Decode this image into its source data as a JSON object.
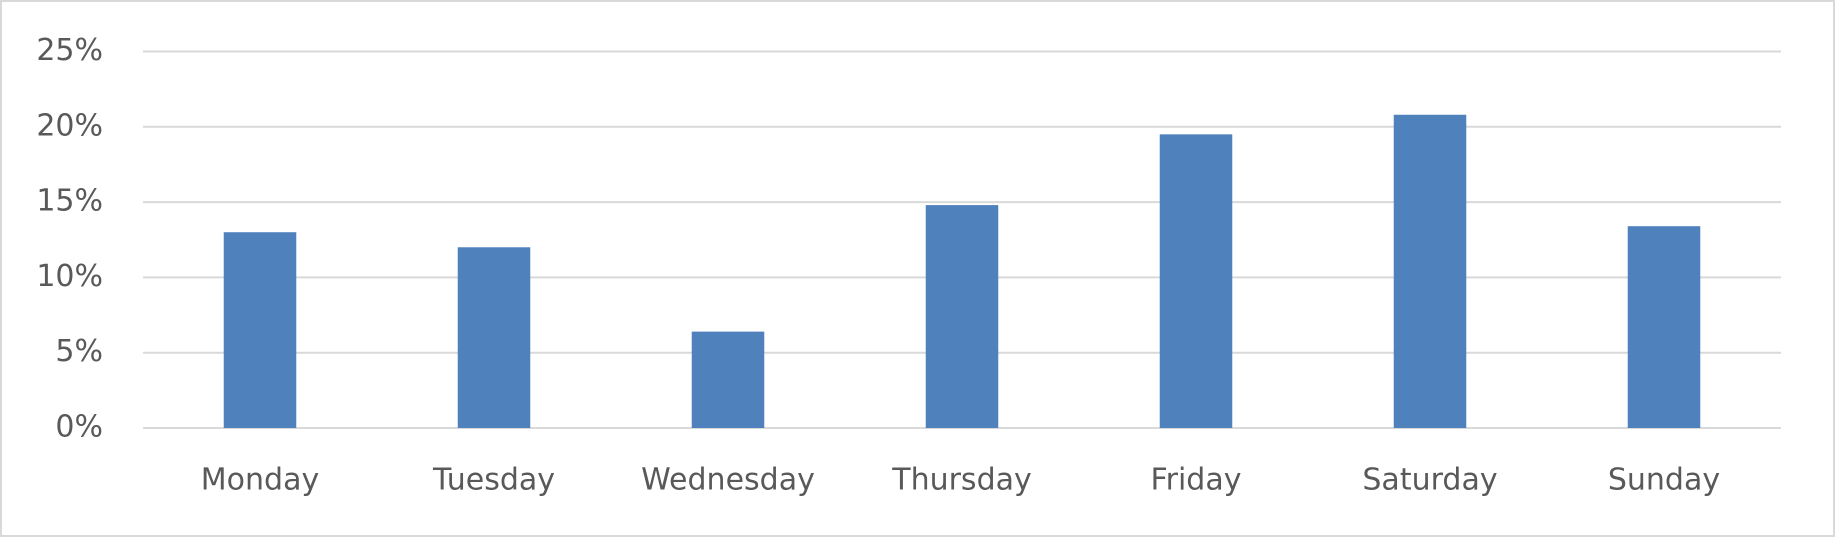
{
  "chart_data": {
    "type": "bar",
    "categories": [
      "Monday",
      "Tuesday",
      "Wednesday",
      "Thursday",
      "Friday",
      "Saturday",
      "Sunday"
    ],
    "values": [
      13.0,
      12.0,
      6.4,
      14.8,
      19.5,
      20.8,
      13.4
    ],
    "color": "#4f81bd",
    "ylim": [
      0,
      25
    ],
    "yticks": [
      {
        "value": 0,
        "label": "0%"
      },
      {
        "value": 5,
        "label": "5%"
      },
      {
        "value": 10,
        "label": "10%"
      },
      {
        "value": 15,
        "label": "15%"
      },
      {
        "value": 20,
        "label": "20%"
      },
      {
        "value": 25,
        "label": "25%"
      }
    ],
    "grid": true
  }
}
